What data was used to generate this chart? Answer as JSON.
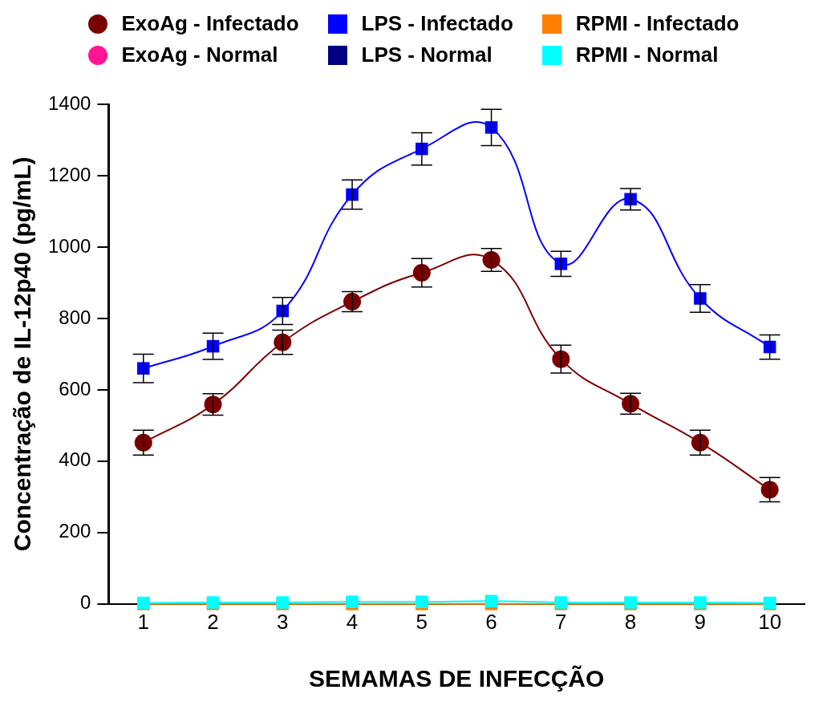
{
  "chart_data": {
    "type": "line",
    "xlabel": "SEMAMAS DE INFECÇÃO",
    "ylabel": "Concentração de IL-12p40 (pg/mL)",
    "categories": [
      "1",
      "2",
      "3",
      "4",
      "5",
      "6",
      "7",
      "8",
      "9",
      "10"
    ],
    "ylim": [
      0,
      1400
    ],
    "yticks": [
      0,
      200,
      400,
      600,
      800,
      1000,
      1200,
      1400
    ],
    "grid": false,
    "legend": "top",
    "series": [
      {
        "name": "ExoAg - Infectado",
        "color": "#7a0000",
        "marker": "circle",
        "values": [
          452,
          559,
          733,
          847,
          928,
          964,
          686,
          561,
          452,
          320
        ],
        "errors": [
          35,
          30,
          34,
          28,
          40,
          32,
          39,
          29,
          35,
          34
        ]
      },
      {
        "name": "ExoAg - Normal",
        "color": "#ff1493",
        "marker": "circle",
        "values": [
          null,
          null,
          null,
          null,
          null,
          null,
          null,
          null,
          null,
          null
        ]
      },
      {
        "name": "LPS - Infectado",
        "color": "#0000ff",
        "marker": "square",
        "values": [
          660,
          722,
          821,
          1147,
          1275,
          1335,
          953,
          1134,
          856,
          720
        ],
        "errors": [
          40,
          37,
          38,
          41,
          45,
          51,
          35,
          30,
          39,
          34
        ]
      },
      {
        "name": "LPS - Normal",
        "color": "#000080",
        "marker": "square",
        "values": [
          null,
          null,
          null,
          null,
          null,
          null,
          null,
          null,
          null,
          null
        ]
      },
      {
        "name": "RPMI - Infectado",
        "color": "#ff8000",
        "marker": "square",
        "values": [
          0,
          0,
          0,
          0,
          0,
          0,
          0,
          0,
          0,
          0
        ]
      },
      {
        "name": "RPMI - Normal",
        "color": "#00ffff",
        "marker": "square",
        "values": [
          3,
          4,
          4,
          6,
          6,
          8,
          4,
          4,
          4,
          3
        ]
      }
    ]
  }
}
